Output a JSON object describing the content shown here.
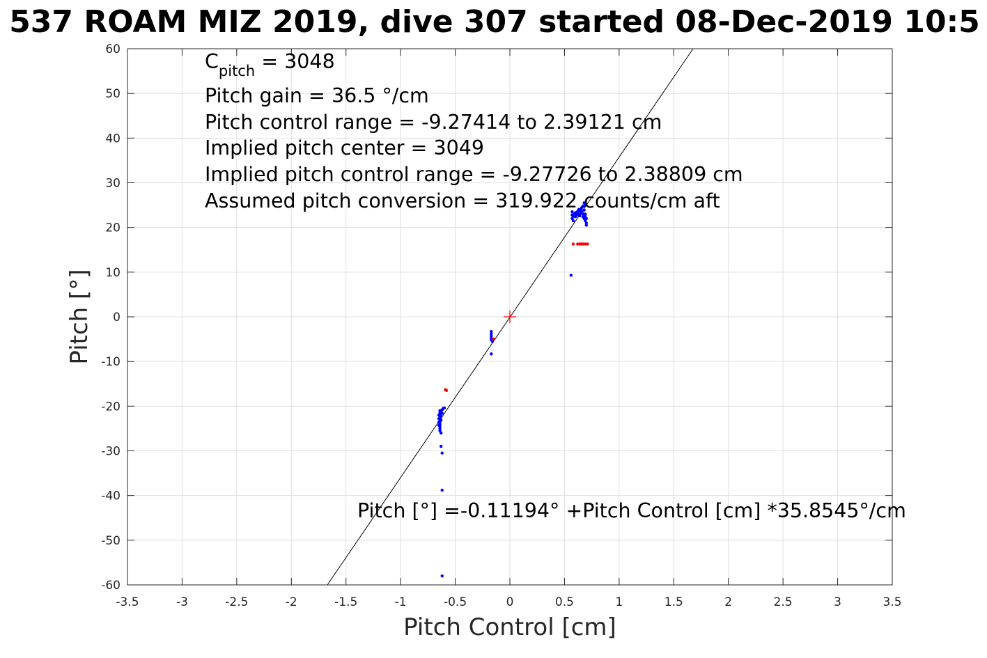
{
  "title": "537 ROAM MIZ 2019, dive 307 started 08-Dec-2019 10:5",
  "chart_data": {
    "type": "scatter",
    "xlabel": "Pitch Control [cm]",
    "ylabel": "Pitch [°]",
    "xlim": [
      -3.5,
      3.5
    ],
    "ylim": [
      -60,
      60
    ],
    "xticks": [
      -3.5,
      -3,
      -2.5,
      -2,
      -1.5,
      -1,
      -0.5,
      0,
      0.5,
      1,
      1.5,
      2,
      2.5,
      3,
      3.5
    ],
    "yticks": [
      -60,
      -50,
      -40,
      -30,
      -20,
      -10,
      0,
      10,
      20,
      30,
      40,
      50,
      60
    ],
    "grid": true,
    "series": [
      {
        "color": "#0000ff",
        "points": [
          [
            -0.64,
            -21.0
          ],
          [
            -0.64,
            -21.5
          ],
          [
            -0.64,
            -22.0
          ],
          [
            -0.64,
            -22.5
          ],
          [
            -0.64,
            -23.0
          ],
          [
            -0.64,
            -23.5
          ],
          [
            -0.64,
            -24.0
          ],
          [
            -0.64,
            -24.5
          ],
          [
            -0.64,
            -25.0
          ],
          [
            -0.64,
            -25.5
          ],
          [
            -0.65,
            -22.0
          ],
          [
            -0.65,
            -22.8
          ],
          [
            -0.65,
            -23.6
          ],
          [
            -0.65,
            -24.3
          ],
          [
            -0.63,
            -21.2
          ],
          [
            -0.63,
            -22.3
          ],
          [
            -0.63,
            -23.1
          ],
          [
            -0.62,
            -20.8
          ],
          [
            -0.62,
            -21.6
          ],
          [
            -0.61,
            -20.5
          ],
          [
            -0.6,
            -20.4
          ],
          [
            -0.63,
            -26.0
          ],
          [
            -0.63,
            -29.0
          ],
          [
            -0.62,
            -30.5
          ],
          [
            -0.62,
            -38.8
          ],
          [
            -0.62,
            -58.0
          ],
          [
            -0.17,
            -3.3
          ],
          [
            -0.17,
            -3.8
          ],
          [
            -0.17,
            -4.3
          ],
          [
            -0.17,
            -4.8
          ],
          [
            -0.17,
            -5.2
          ],
          [
            -0.16,
            -5.5
          ],
          [
            -0.15,
            -5.0
          ],
          [
            -0.17,
            -8.3
          ],
          [
            0.57,
            22.0
          ],
          [
            0.57,
            22.8
          ],
          [
            0.57,
            23.5
          ],
          [
            0.58,
            21.5
          ],
          [
            0.58,
            22.5
          ],
          [
            0.59,
            23.0
          ],
          [
            0.6,
            22.4
          ],
          [
            0.6,
            23.3
          ],
          [
            0.61,
            23.0
          ],
          [
            0.62,
            23.6
          ],
          [
            0.62,
            22.8
          ],
          [
            0.63,
            24.0
          ],
          [
            0.63,
            23.0
          ],
          [
            0.64,
            23.8
          ],
          [
            0.64,
            22.6
          ],
          [
            0.65,
            24.2
          ],
          [
            0.65,
            23.2
          ],
          [
            0.66,
            23.6
          ],
          [
            0.66,
            24.5
          ],
          [
            0.67,
            23.0
          ],
          [
            0.67,
            24.8
          ],
          [
            0.67,
            22.4
          ],
          [
            0.68,
            23.9
          ],
          [
            0.68,
            22.0
          ],
          [
            0.68,
            24.8
          ],
          [
            0.69,
            23.0
          ],
          [
            0.69,
            21.5
          ],
          [
            0.69,
            22.5
          ],
          [
            0.7,
            21.0
          ],
          [
            0.7,
            20.5
          ],
          [
            0.7,
            22.0
          ],
          [
            0.69,
            25.0
          ],
          [
            0.68,
            25.5
          ],
          [
            0.56,
            9.3
          ]
        ]
      },
      {
        "color": "#ff0000",
        "points": [
          [
            -0.58,
            -16.5
          ],
          [
            -0.59,
            -16.3
          ],
          [
            -0.15,
            -5.0
          ],
          [
            0.58,
            16.3
          ],
          [
            0.62,
            16.3
          ],
          [
            0.64,
            16.3
          ],
          [
            0.65,
            16.3
          ],
          [
            0.66,
            16.3
          ],
          [
            0.67,
            16.3
          ],
          [
            0.69,
            16.3
          ],
          [
            0.71,
            16.3
          ]
        ]
      }
    ],
    "center_marker": {
      "x": 0,
      "y": 0,
      "color": "#ff0000"
    },
    "fit_line": {
      "intercept": -0.11194,
      "slope": 35.8545,
      "color": "#000000"
    },
    "annotations": {
      "c_pitch_main": "C",
      "c_pitch_sub": "pitch",
      "c_pitch_value": " = 3048",
      "pitch_gain": "Pitch gain = 36.5 °/cm",
      "pitch_control_range": "Pitch control range = -9.27414 to 2.39121 cm",
      "implied_center": "Implied pitch center = 3049",
      "implied_range": "Implied pitch control range = -9.27726 to 2.38809 cm",
      "assumed_conversion": "Assumed pitch conversion = 319.922 counts/cm aft",
      "fit_equation": "Pitch [°] =-0.11194° +Pitch Control [cm] *35.8545°/cm"
    }
  }
}
